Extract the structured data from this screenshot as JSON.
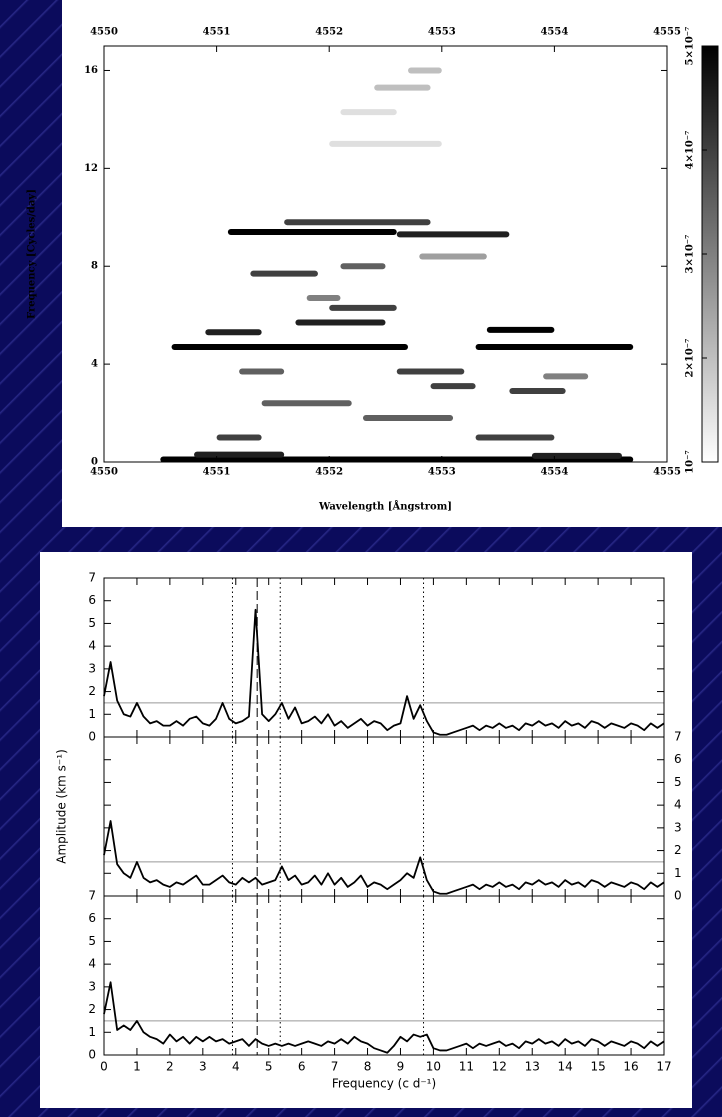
{
  "chart_data": [
    {
      "type": "heatmap",
      "xlabel": "Wavelength [Ångstrom]",
      "ylabel": "Frequency [Cycles/day]",
      "xlim": [
        4550,
        4555
      ],
      "xticks": [
        4550,
        4551,
        4552,
        4553,
        4554,
        4555
      ],
      "ylim": [
        0,
        17
      ],
      "yticks": [
        0,
        4,
        8,
        12,
        16
      ],
      "colorbar_lim": [
        1e-07,
        5e-07
      ],
      "colorbar_ticks": [
        {
          "value": 1e-07,
          "label": "10⁻⁷"
        },
        {
          "value": 2e-07,
          "label": "2×10⁻⁷"
        },
        {
          "value": 3e-07,
          "label": "3×10⁻⁷"
        },
        {
          "value": 4e-07,
          "label": "4×10⁻⁷"
        },
        {
          "value": 5e-07,
          "label": "5×10⁻⁷"
        }
      ],
      "streaks": [
        [
          4550.5,
          4554.7,
          0.1,
          5e-07
        ],
        [
          4550.8,
          4551.6,
          0.3,
          4.5e-07
        ],
        [
          4553.8,
          4554.6,
          0.25,
          4.5e-07
        ],
        [
          4551.0,
          4551.4,
          1.0,
          4e-07
        ],
        [
          4553.3,
          4554.0,
          1.0,
          4e-07
        ],
        [
          4552.3,
          4553.1,
          1.8,
          3.5e-07
        ],
        [
          4550.6,
          4552.7,
          4.7,
          5e-07
        ],
        [
          4553.3,
          4554.7,
          4.7,
          5e-07
        ],
        [
          4550.9,
          4551.4,
          5.3,
          4.5e-07
        ],
        [
          4553.4,
          4554.0,
          5.4,
          5e-07
        ],
        [
          4551.7,
          4552.5,
          5.7,
          4.5e-07
        ],
        [
          4552.0,
          4552.6,
          6.3,
          4e-07
        ],
        [
          4551.3,
          4551.9,
          7.7,
          4e-07
        ],
        [
          4552.1,
          4552.5,
          8.0,
          3.5e-07
        ],
        [
          4551.1,
          4552.6,
          9.4,
          5e-07
        ],
        [
          4552.6,
          4553.6,
          9.3,
          4.5e-07
        ],
        [
          4551.6,
          4552.9,
          9.8,
          4e-07
        ],
        [
          4552.9,
          4553.3,
          3.1,
          4e-07
        ],
        [
          4553.6,
          4554.1,
          2.9,
          4e-07
        ],
        [
          4551.2,
          4551.6,
          3.7,
          3.5e-07
        ],
        [
          4552.6,
          4553.2,
          3.7,
          4e-07
        ],
        [
          4551.4,
          4552.2,
          2.4,
          3.5e-07
        ],
        [
          4552.8,
          4553.4,
          8.4,
          2.5e-07
        ],
        [
          4552.4,
          4552.9,
          15.3,
          2e-07
        ],
        [
          4552.7,
          4553.0,
          16.0,
          2e-07
        ],
        [
          4552.1,
          4552.6,
          14.3,
          1.5e-07
        ],
        [
          4552.0,
          4553.0,
          13.0,
          1.5e-07
        ],
        [
          4553.9,
          4554.3,
          3.5,
          3e-07
        ],
        [
          4551.8,
          4552.1,
          6.7,
          3e-07
        ]
      ]
    },
    {
      "type": "line",
      "xlabel": "Frequency (c d⁻¹)",
      "ylabel": "Amplitude (km s⁻¹)",
      "xlim": [
        0,
        17
      ],
      "xticks": [
        0,
        1,
        2,
        3,
        4,
        5,
        6,
        7,
        8,
        9,
        10,
        11,
        12,
        13,
        14,
        15,
        16,
        17
      ],
      "ylim": [
        0,
        7
      ],
      "yticks": [
        0,
        1,
        2,
        3,
        4,
        5,
        6,
        7
      ],
      "threshold": 1.5,
      "threshold_color": "#999999",
      "color": "#000000",
      "vlines": [
        {
          "value": 3.9,
          "style": "dotted"
        },
        {
          "value": 4.65,
          "style": "dashed"
        },
        {
          "value": 5.35,
          "style": "dotted"
        },
        {
          "value": 9.7,
          "style": "dotted"
        }
      ],
      "x": [
        0,
        0.2,
        0.4,
        0.6,
        0.8,
        1,
        1.2,
        1.4,
        1.6,
        1.8,
        2,
        2.2,
        2.4,
        2.6,
        2.8,
        3,
        3.2,
        3.4,
        3.6,
        3.8,
        4,
        4.2,
        4.4,
        4.6,
        4.8,
        5,
        5.2,
        5.4,
        5.6,
        5.8,
        6,
        6.2,
        6.4,
        6.6,
        6.8,
        7,
        7.2,
        7.4,
        7.6,
        7.8,
        8,
        8.2,
        8.4,
        8.6,
        8.8,
        9,
        9.2,
        9.4,
        9.6,
        9.8,
        10,
        10.2,
        10.4,
        10.6,
        10.8,
        11,
        11.2,
        11.4,
        11.6,
        11.8,
        12,
        12.2,
        12.4,
        12.6,
        12.8,
        13,
        13.2,
        13.4,
        13.6,
        13.8,
        14,
        14.2,
        14.4,
        14.6,
        14.8,
        15,
        15.2,
        15.4,
        15.6,
        15.8,
        16,
        16.2,
        16.4,
        16.6,
        16.8,
        17
      ],
      "panels": [
        {
          "tick_labels_side": "left",
          "values": [
            1.8,
            3.3,
            1.6,
            1.0,
            0.9,
            1.5,
            0.9,
            0.6,
            0.7,
            0.5,
            0.5,
            0.7,
            0.5,
            0.8,
            0.9,
            0.6,
            0.5,
            0.8,
            1.5,
            0.8,
            0.6,
            0.7,
            0.9,
            5.6,
            1.0,
            0.7,
            1.0,
            1.5,
            0.8,
            1.3,
            0.6,
            0.7,
            0.9,
            0.6,
            1.0,
            0.5,
            0.7,
            0.4,
            0.6,
            0.8,
            0.5,
            0.7,
            0.6,
            0.3,
            0.5,
            0.6,
            1.8,
            0.8,
            1.4,
            0.7,
            0.2,
            0.1,
            0.1,
            0.2,
            0.3,
            0.4,
            0.5,
            0.3,
            0.5,
            0.4,
            0.6,
            0.4,
            0.5,
            0.3,
            0.6,
            0.5,
            0.7,
            0.5,
            0.6,
            0.4,
            0.7,
            0.5,
            0.6,
            0.4,
            0.7,
            0.6,
            0.4,
            0.6,
            0.5,
            0.4,
            0.6,
            0.5,
            0.3,
            0.6,
            0.4,
            0.6
          ]
        },
        {
          "tick_labels_side": "right",
          "values": [
            1.8,
            3.3,
            1.4,
            1.0,
            0.8,
            1.5,
            0.8,
            0.6,
            0.7,
            0.5,
            0.4,
            0.6,
            0.5,
            0.7,
            0.9,
            0.5,
            0.5,
            0.7,
            0.9,
            0.6,
            0.5,
            0.8,
            0.6,
            0.8,
            0.5,
            0.6,
            0.7,
            1.3,
            0.7,
            0.9,
            0.5,
            0.6,
            0.9,
            0.5,
            1.0,
            0.5,
            0.8,
            0.4,
            0.6,
            0.9,
            0.4,
            0.6,
            0.5,
            0.3,
            0.5,
            0.7,
            1.0,
            0.8,
            1.7,
            0.7,
            0.2,
            0.1,
            0.1,
            0.2,
            0.3,
            0.4,
            0.5,
            0.3,
            0.5,
            0.4,
            0.6,
            0.4,
            0.5,
            0.3,
            0.6,
            0.5,
            0.7,
            0.5,
            0.6,
            0.4,
            0.7,
            0.5,
            0.6,
            0.4,
            0.7,
            0.6,
            0.4,
            0.6,
            0.5,
            0.4,
            0.6,
            0.5,
            0.3,
            0.6,
            0.4,
            0.6
          ]
        },
        {
          "tick_labels_side": "left",
          "values": [
            1.8,
            3.2,
            1.1,
            1.3,
            1.1,
            1.5,
            1.0,
            0.8,
            0.7,
            0.5,
            0.9,
            0.6,
            0.8,
            0.5,
            0.8,
            0.6,
            0.8,
            0.6,
            0.7,
            0.5,
            0.6,
            0.7,
            0.4,
            0.7,
            0.5,
            0.4,
            0.5,
            0.4,
            0.5,
            0.4,
            0.5,
            0.6,
            0.5,
            0.4,
            0.6,
            0.5,
            0.7,
            0.5,
            0.8,
            0.6,
            0.5,
            0.3,
            0.2,
            0.1,
            0.4,
            0.8,
            0.6,
            0.9,
            0.8,
            0.9,
            0.3,
            0.2,
            0.2,
            0.3,
            0.4,
            0.5,
            0.3,
            0.5,
            0.4,
            0.5,
            0.6,
            0.4,
            0.5,
            0.3,
            0.6,
            0.5,
            0.7,
            0.5,
            0.6,
            0.4,
            0.7,
            0.5,
            0.6,
            0.4,
            0.7,
            0.6,
            0.4,
            0.6,
            0.5,
            0.4,
            0.6,
            0.5,
            0.3,
            0.6,
            0.4,
            0.6
          ]
        }
      ]
    }
  ]
}
